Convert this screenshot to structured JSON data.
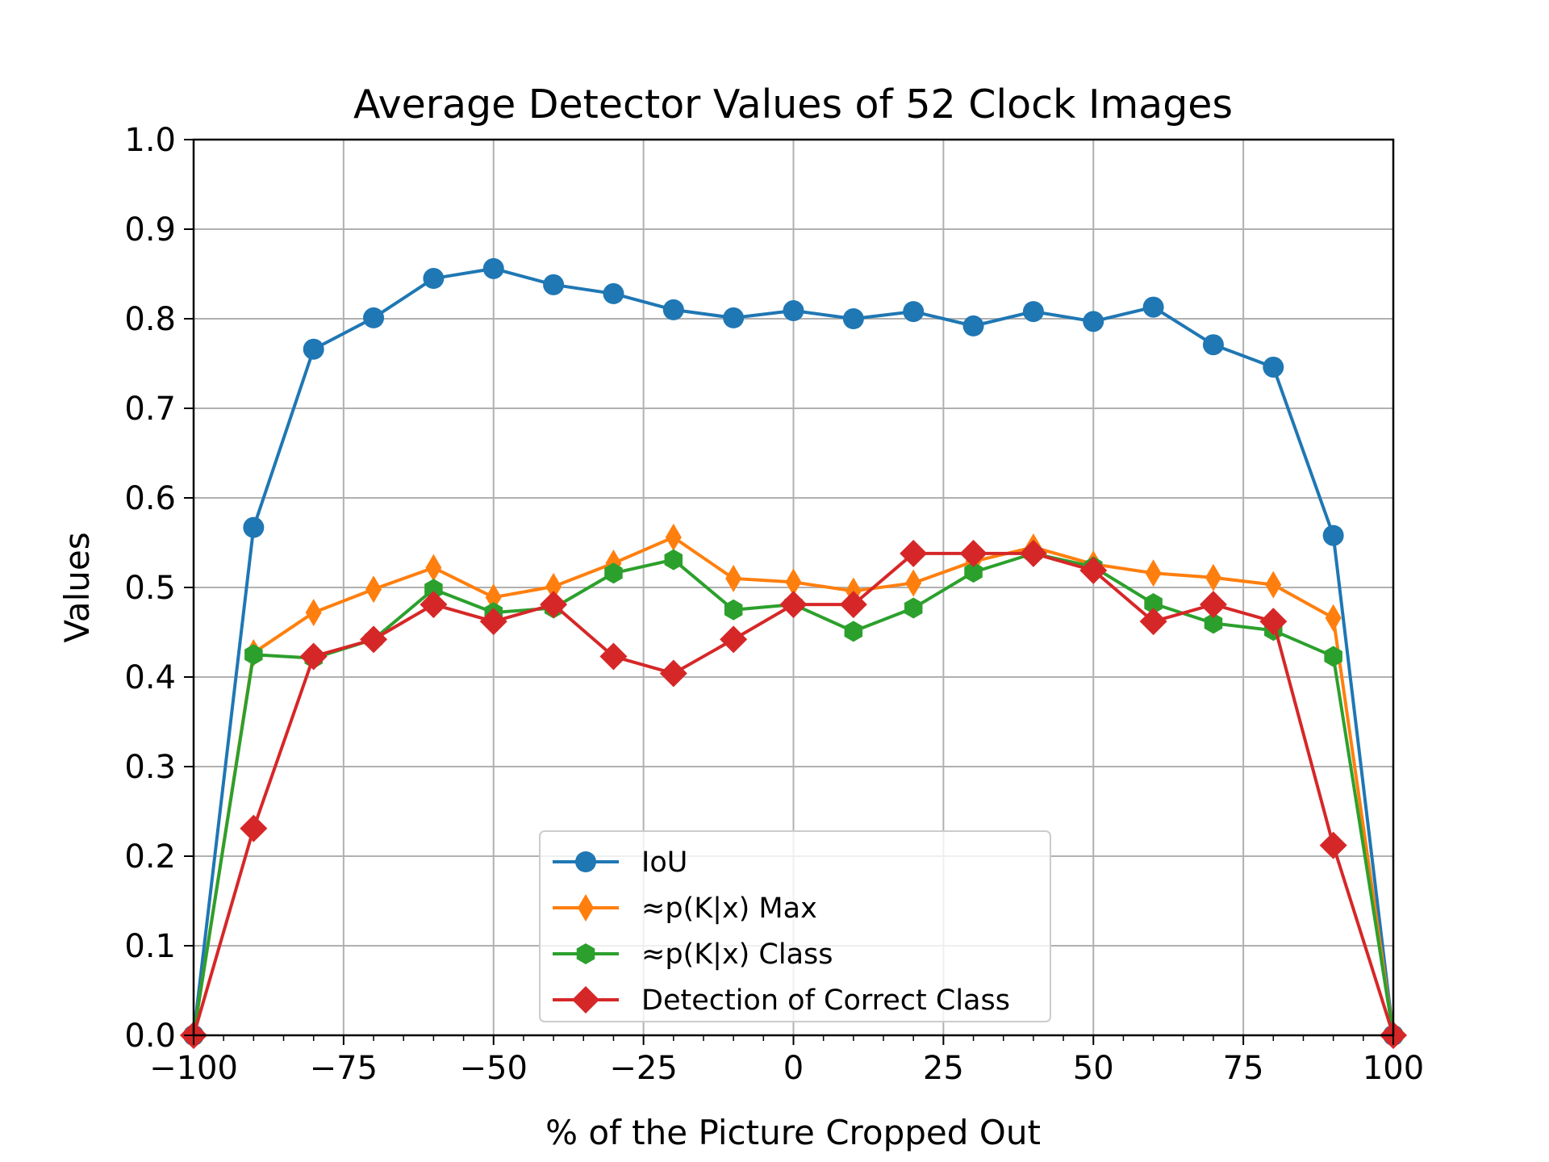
{
  "chart_data": {
    "type": "line",
    "title": "Average Detector Values of 52 Clock Images",
    "xlabel": "% of the Picture Cropped Out",
    "ylabel": "Values",
    "xlim": [
      -100,
      100
    ],
    "ylim": [
      0.0,
      1.0
    ],
    "grid": true,
    "legend_position": "lower-center",
    "x_ticks": [
      -100,
      -75,
      -50,
      -25,
      0,
      25,
      50,
      75,
      100
    ],
    "x_tick_labels": [
      "−100",
      "−75",
      "−50",
      "−25",
      "0",
      "25",
      "50",
      "75",
      "100"
    ],
    "y_ticks": [
      0.0,
      0.1,
      0.2,
      0.3,
      0.4,
      0.5,
      0.6,
      0.7,
      0.8,
      0.9,
      1.0
    ],
    "y_tick_labels": [
      "0.0",
      "0.1",
      "0.2",
      "0.3",
      "0.4",
      "0.5",
      "0.6",
      "0.7",
      "0.8",
      "0.9",
      "1.0"
    ],
    "x": [
      -100,
      -90,
      -80,
      -70,
      -60,
      -50,
      -40,
      -30,
      -20,
      -10,
      0,
      10,
      20,
      30,
      40,
      50,
      60,
      70,
      80,
      90,
      100
    ],
    "series": [
      {
        "name": "IoU",
        "color": "#1f77b4",
        "marker": "circle",
        "values": [
          0.0,
          0.567,
          0.766,
          0.801,
          0.845,
          0.856,
          0.838,
          0.828,
          0.81,
          0.801,
          0.809,
          0.8,
          0.808,
          0.792,
          0.808,
          0.797,
          0.813,
          0.771,
          0.746,
          0.558,
          0.0
        ]
      },
      {
        "name": "≈p(K|x) Max",
        "color": "#ff7f0e",
        "marker": "thin-diamond",
        "values": [
          0.0,
          0.427,
          0.472,
          0.498,
          0.522,
          0.489,
          0.501,
          0.527,
          0.556,
          0.51,
          0.506,
          0.496,
          0.505,
          0.529,
          0.545,
          0.526,
          0.516,
          0.511,
          0.503,
          0.466,
          0.0
        ]
      },
      {
        "name": "≈p(K|x) Class",
        "color": "#2ca02c",
        "marker": "hexagon",
        "values": [
          0.0,
          0.425,
          0.421,
          0.442,
          0.498,
          0.472,
          0.477,
          0.516,
          0.531,
          0.475,
          0.481,
          0.451,
          0.477,
          0.517,
          0.538,
          0.523,
          0.482,
          0.46,
          0.452,
          0.423,
          0.0
        ]
      },
      {
        "name": "Detection of Correct Class",
        "color": "#d62728",
        "marker": "diamond",
        "values": [
          0.0,
          0.231,
          0.423,
          0.442,
          0.481,
          0.462,
          0.481,
          0.423,
          0.404,
          0.442,
          0.481,
          0.481,
          0.538,
          0.538,
          0.538,
          0.519,
          0.462,
          0.481,
          0.462,
          0.212,
          0.0
        ]
      }
    ]
  }
}
